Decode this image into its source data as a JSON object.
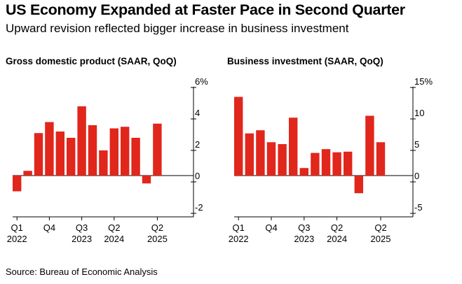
{
  "title": "US Economy Expanded at Faster Pace in Second Quarter",
  "subtitle": "Upward revision reflected bigger increase in business investment",
  "source": "Source: Bureau of Economic Analysis",
  "colors": {
    "bar": "#e1261c",
    "axis": "#000000",
    "grid": "#cccccc"
  },
  "chart_data": [
    {
      "type": "bar",
      "title": "Gross domestic product (SAAR, QoQ)",
      "categories": [
        "Q1 2022",
        "Q2 2022",
        "Q3 2022",
        "Q4 2022",
        "Q1 2023",
        "Q2 2023",
        "Q3 2023",
        "Q4 2023",
        "Q1 2024",
        "Q2 2024",
        "Q3 2024",
        "Q4 2024",
        "Q1 2025",
        "Q2 2025"
      ],
      "values": [
        -1.0,
        0.3,
        2.7,
        3.4,
        2.8,
        2.4,
        4.4,
        3.2,
        1.6,
        3.0,
        3.1,
        2.4,
        -0.5,
        3.3
      ],
      "ylim": [
        -2,
        6
      ],
      "yticks": [
        {
          "v": 6,
          "label": "6%"
        },
        {
          "v": 4,
          "label": "4"
        },
        {
          "v": 2,
          "label": "2"
        },
        {
          "v": 0,
          "label": "0"
        },
        {
          "v": -2,
          "label": "-2"
        }
      ],
      "xticks": [
        {
          "i": 0,
          "label": "Q1",
          "sub": "2022"
        },
        {
          "i": 3,
          "label": "Q4",
          "sub": ""
        },
        {
          "i": 6,
          "label": "Q3",
          "sub": "2023"
        },
        {
          "i": 9,
          "label": "Q2",
          "sub": "2024"
        },
        {
          "i": 13,
          "label": "Q2",
          "sub": "2025"
        }
      ]
    },
    {
      "type": "bar",
      "title": "Business investment (SAAR, QoQ)",
      "categories": [
        "Q1 2022",
        "Q2 2022",
        "Q3 2022",
        "Q4 2022",
        "Q1 2023",
        "Q2 2023",
        "Q3 2023",
        "Q4 2023",
        "Q1 2024",
        "Q2 2024",
        "Q3 2024",
        "Q4 2024",
        "Q1 2025",
        "Q2 2025"
      ],
      "values": [
        12.5,
        6.7,
        7.2,
        5.3,
        5.0,
        9.2,
        1.2,
        3.6,
        4.2,
        3.7,
        3.8,
        -2.8,
        9.5,
        5.3
      ],
      "ylim": [
        -5,
        15
      ],
      "yticks": [
        {
          "v": 15,
          "label": "15%"
        },
        {
          "v": 10,
          "label": "10"
        },
        {
          "v": 5,
          "label": "5"
        },
        {
          "v": 0,
          "label": "0"
        },
        {
          "v": -5,
          "label": "-5"
        }
      ],
      "xticks": [
        {
          "i": 0,
          "label": "Q1",
          "sub": "2022"
        },
        {
          "i": 3,
          "label": "Q4",
          "sub": ""
        },
        {
          "i": 6,
          "label": "Q3",
          "sub": "2023"
        },
        {
          "i": 9,
          "label": "Q2",
          "sub": "2024"
        },
        {
          "i": 13,
          "label": "Q2",
          "sub": "2025"
        }
      ]
    }
  ]
}
